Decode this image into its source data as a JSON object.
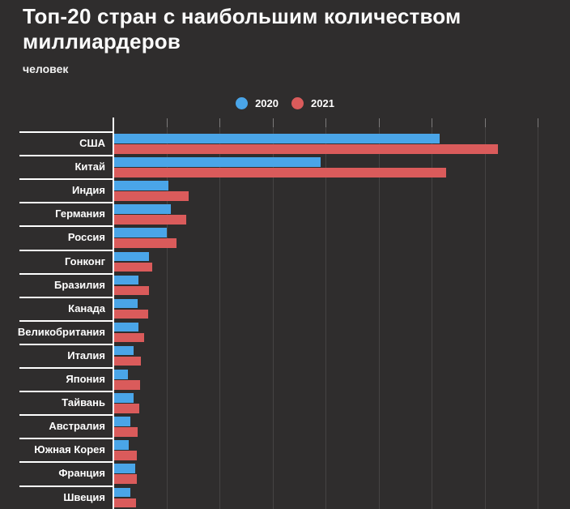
{
  "title": "Топ-20 стран с наибольшим количеством миллиардеров",
  "subtitle": "человек",
  "legend": {
    "items": [
      {
        "label": "2020",
        "swatch": "circle-icon",
        "color": "#4aa5e8"
      },
      {
        "label": "2021",
        "swatch": "circle-icon",
        "color": "#da5b5b"
      }
    ],
    "position": "top-center"
  },
  "colors": {
    "background": "#2f2d2d",
    "gridline": "#454343",
    "tick": "#7c7a7a",
    "axis": "#ffffff",
    "separator": "#ffffff",
    "text": "#ffffff",
    "series_2020": "#4aa5e8",
    "series_2021": "#da5b5b"
  },
  "chart_data": {
    "type": "bar",
    "orientation": "horizontal",
    "title": "Топ-20 стран с наибольшим количеством миллиардеров",
    "subtitle_units": "человек",
    "categories": [
      "США",
      "Китай",
      "Индия",
      "Германия",
      "Россия",
      "Гонконг",
      "Бразилия",
      "Канада",
      "Великобритания",
      "Италия",
      "Япония",
      "Тайвань",
      "Австралия",
      "Южная Корея",
      "Франция",
      "Швеция"
    ],
    "series": [
      {
        "name": "2020",
        "color": "#4aa5e8",
        "values": [
          614,
          389,
          102,
          107,
          99,
          66,
          45,
          44,
          45,
          36,
          26,
          36,
          31,
          28,
          39,
          31
        ]
      },
      {
        "name": "2021",
        "color": "#da5b5b",
        "values": [
          724,
          626,
          140,
          136,
          117,
          71,
          65,
          64,
          56,
          51,
          49,
          47,
          44,
          43,
          42,
          41
        ]
      }
    ],
    "xlim": [
      0,
      860
    ],
    "gridline_step": 100,
    "gridline_values": [
      100,
      200,
      300,
      400,
      500,
      600,
      700,
      800
    ],
    "grid": true,
    "value_labels": false,
    "legend_position": "top-center",
    "note": "list truncated by viewport after 16 of 20 countries"
  }
}
